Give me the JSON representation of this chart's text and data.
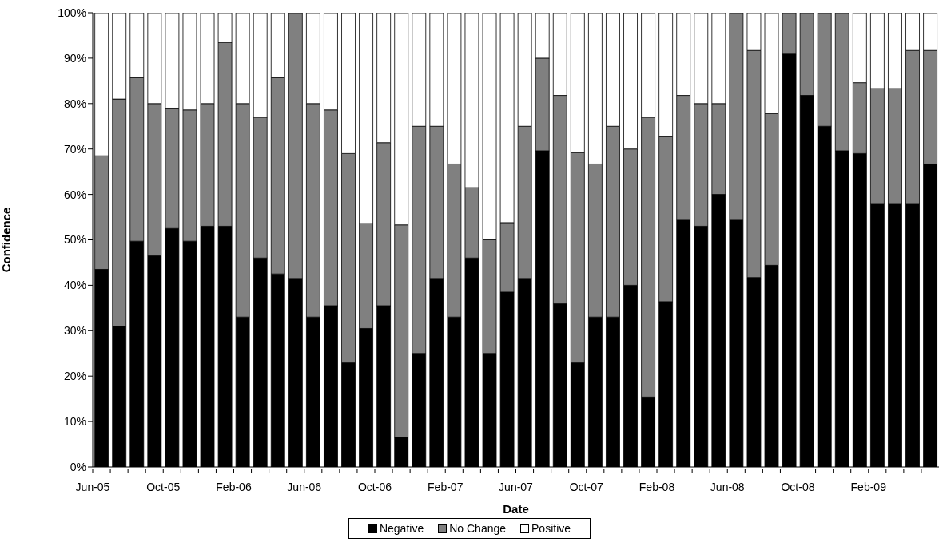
{
  "chart_data": {
    "type": "bar",
    "stacked": true,
    "xlabel": "Date",
    "ylabel": "Confidence",
    "categories": [
      "Jun-05",
      null,
      null,
      null,
      "Oct-05",
      null,
      null,
      null,
      "Feb-06",
      null,
      null,
      null,
      "Jun-06",
      null,
      null,
      null,
      "Oct-06",
      null,
      null,
      null,
      "Feb-07",
      null,
      null,
      null,
      "Jun-07",
      null,
      null,
      null,
      "Oct-07",
      null,
      null,
      null,
      "Feb-08",
      null,
      null,
      null,
      "Jun-08",
      null,
      null,
      null,
      "Oct-08",
      null,
      null,
      null,
      "Feb-09",
      null,
      null,
      null
    ],
    "series": [
      {
        "name": "Negative",
        "color": "#000000",
        "values": [
          43.5,
          31,
          49.7,
          46.5,
          52.5,
          49.7,
          53,
          53,
          33,
          46,
          42.5,
          41.5,
          33,
          35.5,
          23,
          30.5,
          35.5,
          6.5,
          25,
          41.5,
          33,
          46,
          25,
          38.5,
          41.5,
          69.6,
          36,
          23,
          33,
          33,
          40,
          15.4,
          36.4,
          54.5,
          53,
          60,
          54.5,
          41.7,
          44.4,
          90.9,
          81.8,
          75,
          69.6,
          69,
          58,
          58,
          58,
          66.7
        ]
      },
      {
        "name": "No Change",
        "color": "#808080",
        "values": [
          25,
          50,
          36,
          33.5,
          26.5,
          28.9,
          27,
          40.5,
          47,
          31,
          43.2,
          58.5,
          47,
          43.1,
          46,
          23.1,
          35.9,
          46.8,
          50,
          33.5,
          33.7,
          15.5,
          25,
          15.3,
          33.5,
          20.4,
          45.8,
          46.2,
          33.7,
          42,
          30,
          61.6,
          36.3,
          27.3,
          27,
          20,
          45.5,
          50,
          33.4,
          9.1,
          18.2,
          25,
          30.4,
          15.6,
          25.3,
          25.3,
          33.7,
          25
        ]
      },
      {
        "name": "Positive",
        "color": "#ffffff",
        "values": [
          31.5,
          19,
          14.3,
          20,
          21,
          21.4,
          20,
          6.5,
          20,
          23,
          14.3,
          0,
          20,
          21.4,
          31,
          46.4,
          28.6,
          46.7,
          25,
          25,
          33.3,
          38.5,
          50,
          46.2,
          25,
          10,
          18.2,
          30.8,
          33.3,
          25,
          30,
          23,
          27.3,
          18.2,
          20,
          20,
          0,
          8.3,
          22.2,
          0,
          0,
          0,
          0,
          15.4,
          16.7,
          16.7,
          8.3,
          8.3
        ]
      }
    ],
    "ylim": [
      0,
      100
    ],
    "yticks": [
      {
        "value": 0,
        "label": "0%"
      },
      {
        "value": 10,
        "label": "10%"
      },
      {
        "value": 20,
        "label": "20%"
      },
      {
        "value": 30,
        "label": "30%"
      },
      {
        "value": 40,
        "label": "40%"
      },
      {
        "value": 50,
        "label": "50%"
      },
      {
        "value": 60,
        "label": "60%"
      },
      {
        "value": 70,
        "label": "70%"
      },
      {
        "value": 80,
        "label": "80%"
      },
      {
        "value": 90,
        "label": "90%"
      },
      {
        "value": 100,
        "label": "100%"
      }
    ],
    "legend": "bottom"
  }
}
